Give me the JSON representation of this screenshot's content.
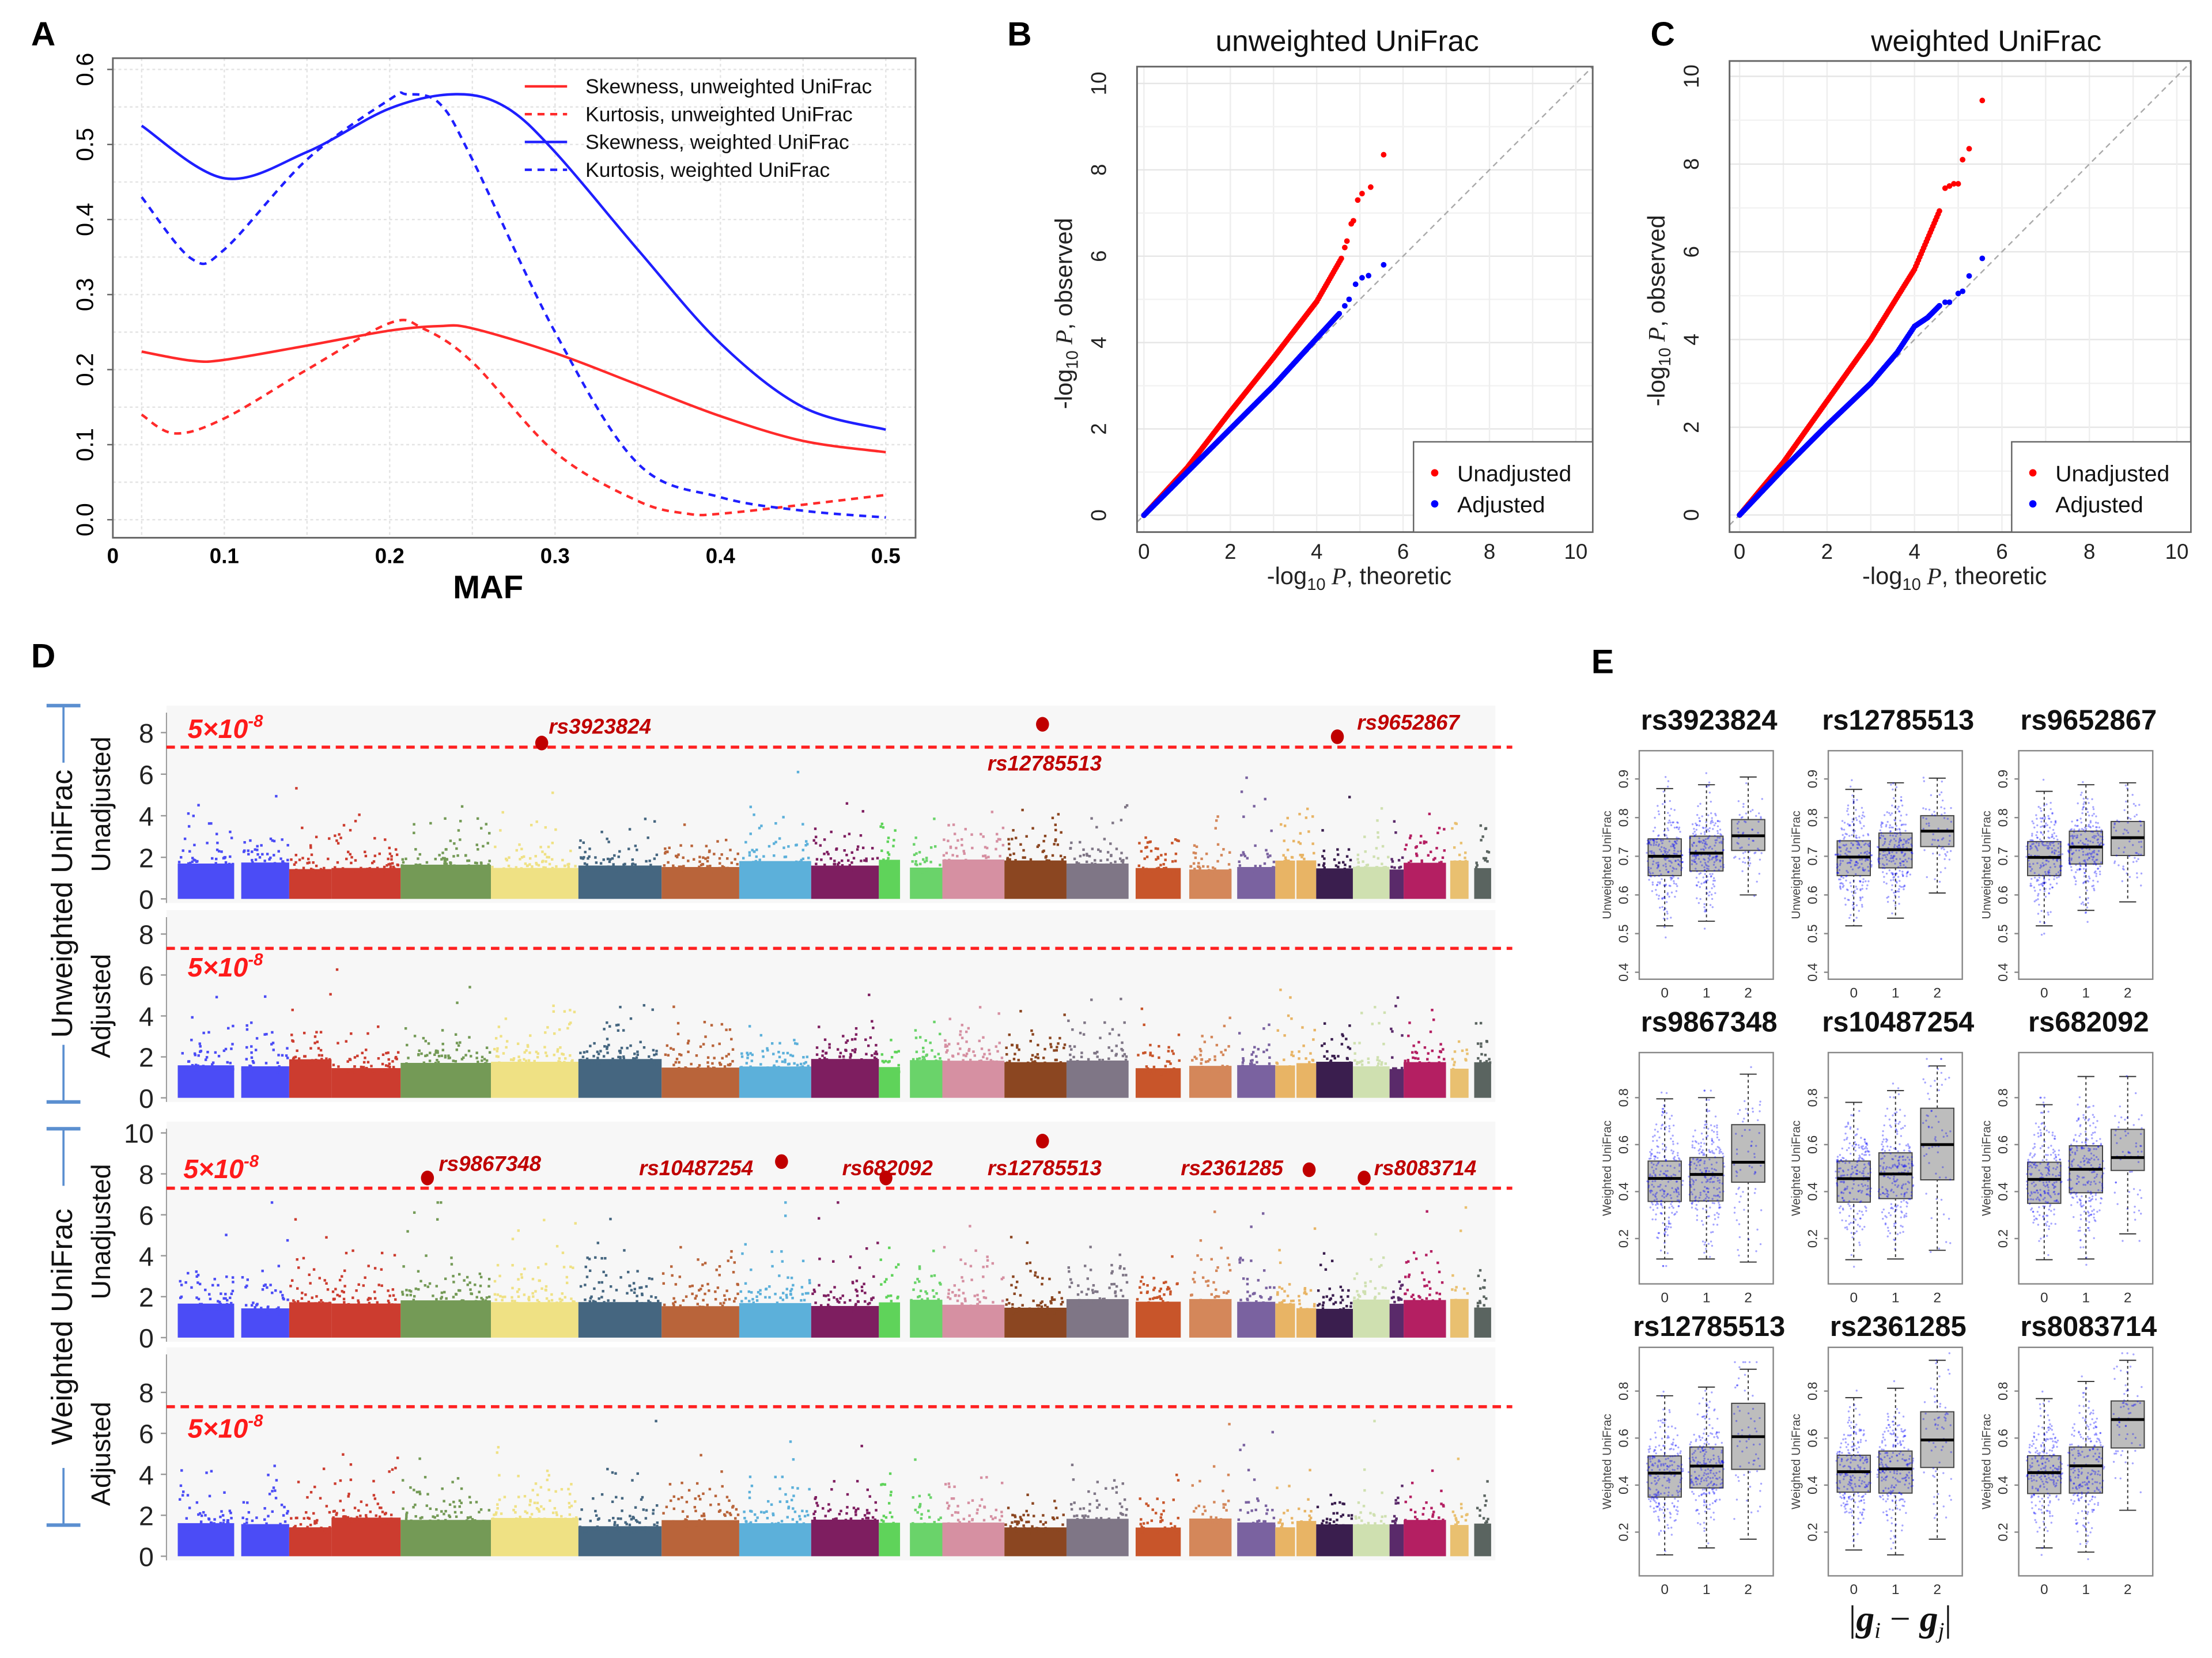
{
  "figure_labels": {
    "a": "A",
    "b": "B",
    "c": "C",
    "d": "D",
    "e": "E"
  },
  "chart_data": [
    {
      "panel": "A",
      "type": "line",
      "xlabel": "MAF",
      "ylabel": "",
      "xlim": [
        0.0326,
        0.518
      ],
      "ylim": [
        -0.024,
        0.615
      ],
      "x_origin_label": "0",
      "xticks": [
        0.1,
        0.2,
        0.3,
        0.4,
        0.5
      ],
      "xtick_labels": [
        "0.1",
        "0.2",
        "0.3",
        "0.4",
        "0.5"
      ],
      "yticks": [
        0,
        0.1,
        0.2,
        0.3,
        0.4,
        0.5,
        0.6
      ],
      "ytick_labels": [
        "0.0",
        "0.1",
        "0.2",
        "0.3",
        "0.4",
        "0.5",
        "0.6"
      ],
      "grid": true,
      "legend": "top-right",
      "series": [
        {
          "name": "Skewness, unweighted UniFrac",
          "color": "#ff2a2a",
          "dashed": false,
          "x": [
            0.05,
            0.08,
            0.1,
            0.15,
            0.2,
            0.23,
            0.25,
            0.3,
            0.35,
            0.4,
            0.45,
            0.5
          ],
          "y": [
            0.224,
            0.212,
            0.213,
            0.232,
            0.252,
            0.258,
            0.255,
            0.222,
            0.18,
            0.138,
            0.105,
            0.09
          ]
        },
        {
          "name": "Kurtosis, unweighted UniFrac",
          "color": "#ff2a2a",
          "dashed": true,
          "x": [
            0.05,
            0.07,
            0.1,
            0.15,
            0.2,
            0.22,
            0.25,
            0.3,
            0.35,
            0.38,
            0.4,
            0.45,
            0.5
          ],
          "y": [
            0.14,
            0.115,
            0.135,
            0.2,
            0.262,
            0.255,
            0.21,
            0.09,
            0.025,
            0.008,
            0.008,
            0.02,
            0.033
          ]
        },
        {
          "name": "Skewness, weighted UniFrac",
          "color": "#1f1fff",
          "dashed": false,
          "x": [
            0.05,
            0.1,
            0.15,
            0.2,
            0.24,
            0.27,
            0.3,
            0.35,
            0.4,
            0.45,
            0.5
          ],
          "y": [
            0.525,
            0.455,
            0.49,
            0.548,
            0.567,
            0.55,
            0.49,
            0.36,
            0.235,
            0.15,
            0.12
          ]
        },
        {
          "name": "Kurtosis, weighted UniFrac",
          "color": "#1f1fff",
          "dashed": true,
          "x": [
            0.05,
            0.08,
            0.1,
            0.15,
            0.2,
            0.21,
            0.23,
            0.25,
            0.3,
            0.35,
            0.4,
            0.45,
            0.5
          ],
          "y": [
            0.43,
            0.348,
            0.36,
            0.48,
            0.56,
            0.567,
            0.555,
            0.48,
            0.25,
            0.075,
            0.03,
            0.012,
            0.003
          ]
        }
      ]
    },
    {
      "panel": "B",
      "type": "scatter",
      "title": "unweighted  UniFrac",
      "xlabel": {
        "prefix": "-log",
        "sub": "10",
        "italic": " P",
        "suffix": ", theoretic"
      },
      "ylabel": {
        "prefix": "-log",
        "sub": "10",
        "italic": " P",
        "suffix": ", observed"
      },
      "xlim": [
        -0.16,
        10.39
      ],
      "ylim": [
        -0.39,
        10.39
      ],
      "xticks": [
        0,
        2,
        4,
        6,
        8,
        10
      ],
      "yticks": [
        0,
        2,
        4,
        6,
        8,
        10
      ],
      "grid": true,
      "reference_line": "y = x",
      "legend": "bottom-right",
      "series": [
        {
          "name": "Unadjusted",
          "color": "#ff0000",
          "curve": [
            [
              0,
              0
            ],
            [
              1,
              1.1
            ],
            [
              2,
              2.4
            ],
            [
              3,
              3.65
            ],
            [
              4,
              4.95
            ],
            [
              4.6,
              6.0
            ]
          ],
          "tail": [
            [
              4.65,
              6.2
            ],
            [
              4.7,
              6.35
            ],
            [
              4.8,
              6.75
            ],
            [
              4.85,
              6.82
            ],
            [
              4.95,
              7.3
            ],
            [
              5.05,
              7.45
            ],
            [
              5.25,
              7.6
            ],
            [
              5.55,
              8.35
            ]
          ]
        },
        {
          "name": "Adjusted",
          "color": "#0000ff",
          "curve": [
            [
              0,
              0
            ],
            [
              1,
              1
            ],
            [
              2,
              2.0
            ],
            [
              3,
              3.0
            ],
            [
              4,
              4.1
            ],
            [
              4.55,
              4.7
            ]
          ],
          "tail": [
            [
              4.65,
              4.85
            ],
            [
              4.75,
              5.0
            ],
            [
              4.9,
              5.35
            ],
            [
              5.05,
              5.5
            ],
            [
              5.2,
              5.55
            ],
            [
              5.55,
              5.8
            ]
          ]
        }
      ]
    },
    {
      "panel": "C",
      "type": "scatter",
      "title": "weighted  UniFrac",
      "xlabel": {
        "prefix": "-log",
        "sub": "10",
        "italic": " P",
        "suffix": ", theoretic"
      },
      "ylabel": {
        "prefix": "-log",
        "sub": "10",
        "italic": " P",
        "suffix": ", observed"
      },
      "xlim": [
        -0.23,
        10.32
      ],
      "ylim": [
        -0.39,
        10.35
      ],
      "xticks": [
        0,
        2,
        4,
        6,
        8,
        10
      ],
      "yticks": [
        0,
        2,
        4,
        6,
        8,
        10
      ],
      "grid": true,
      "reference_line": "y = x",
      "legend": "bottom-right",
      "series": [
        {
          "name": "Unadjusted",
          "color": "#ff0000",
          "curve": [
            [
              0,
              0
            ],
            [
              1,
              1.2
            ],
            [
              2,
              2.6
            ],
            [
              3,
              4.0
            ],
            [
              4,
              5.6
            ],
            [
              4.6,
              7.0
            ]
          ],
          "tail": [
            [
              4.7,
              7.45
            ],
            [
              4.8,
              7.5
            ],
            [
              4.9,
              7.55
            ],
            [
              5.0,
              7.55
            ],
            [
              5.1,
              8.1
            ],
            [
              5.25,
              8.35
            ],
            [
              5.55,
              9.45
            ]
          ]
        },
        {
          "name": "Adjusted",
          "color": "#0000ff",
          "curve": [
            [
              0,
              0
            ],
            [
              1,
              1.05
            ],
            [
              2,
              2.05
            ],
            [
              3,
              3.0
            ],
            [
              3.6,
              3.7
            ],
            [
              4,
              4.3
            ],
            [
              4.3,
              4.5
            ],
            [
              4.6,
              4.8
            ]
          ],
          "tail": [
            [
              4.7,
              4.85
            ],
            [
              4.8,
              4.85
            ],
            [
              5.0,
              5.05
            ],
            [
              5.1,
              5.1
            ],
            [
              5.25,
              5.45
            ],
            [
              5.55,
              5.85
            ]
          ]
        }
      ]
    },
    {
      "panel": "D",
      "type": "scatter",
      "chromosome_colors": [
        "#4b4cf6",
        "#4b4cf6",
        "#cc3c2f",
        "#cc3c2f",
        "#749a56",
        "#efe184",
        "#456680",
        "#b9643a",
        "#5cb0da",
        "#7e1e60",
        "#5fd35a",
        "#6ad36a",
        "#d690a2",
        "#8b4621",
        "#7f7686",
        "#c8552a",
        "#d4875a",
        "#7a62a0",
        "#e8b465",
        "#e8b465",
        "#3a1e4e",
        "#cfe0b0",
        "#5a2a6a",
        "#b41f62",
        "#e9c070",
        "#5a6460"
      ],
      "threshold_label": {
        "base": "5×10",
        "exp": "-8"
      },
      "threshold_value": 7.3,
      "groups": [
        {
          "label": "Unweighted UniFrac",
          "panels": [
            0,
            1
          ]
        },
        {
          "label": "Weighted UniFrac",
          "panels": [
            2,
            3
          ]
        }
      ],
      "panels": [
        {
          "label": "Unadjusted",
          "ylim": [
            -0.2,
            9.3
          ],
          "yticks": [
            0,
            2,
            4,
            6,
            8
          ],
          "hits": [
            {
              "snp": "rs3923824",
              "chr": 6,
              "value": 7.5
            },
            {
              "snp": "rs12785513",
              "chr": 14,
              "value": 8.4
            },
            {
              "snp": "rs9652867",
              "chr": 21,
              "value": 7.8
            }
          ]
        },
        {
          "label": "Adjusted",
          "ylim": [
            -0.2,
            9.17
          ],
          "yticks": [
            0,
            2,
            4,
            6,
            8
          ],
          "hits": []
        },
        {
          "label": "Unadjusted",
          "ylim": [
            -0.2,
            10.55
          ],
          "yticks": [
            0,
            2,
            4,
            6,
            8,
            10
          ],
          "hits": [
            {
              "snp": "rs9867348",
              "chr": 5,
              "value": 7.8
            },
            {
              "snp": "rs10487254",
              "chr": 9,
              "value": 8.6
            },
            {
              "snp": "rs682092",
              "chr": 11,
              "value": 7.8
            },
            {
              "snp": "rs12785513",
              "chr": 14,
              "value": 9.6
            },
            {
              "snp": "rs2361285",
              "chr": 20,
              "value": 8.2
            },
            {
              "snp": "rs8083714",
              "chr": 22,
              "value": 7.8
            }
          ]
        },
        {
          "label": "Adjusted",
          "ylim": [
            -0.2,
            10.2
          ],
          "yticks": [
            0,
            2,
            4,
            6,
            8
          ],
          "hits": []
        }
      ]
    },
    {
      "panel": "E",
      "type": "box",
      "xlabel": {
        "bar_left": "|",
        "g1": "g",
        "i": "i",
        "minus": " − ",
        "g2": "g",
        "j": "j",
        "bar_right": "|"
      },
      "xticks": [
        "0",
        "1",
        "2"
      ],
      "point_color": "#0000ff",
      "plots": [
        {
          "title": "rs3923824",
          "ylabel": "Unweighted UniFrac",
          "ylim": [
            0.382,
            0.973
          ],
          "yticks": [
            0.4,
            0.5,
            0.6,
            0.7,
            0.8,
            0.9
          ],
          "groups": [
            {
              "med": 0.7,
              "q1": 0.65,
              "q3": 0.745,
              "lo": 0.52,
              "hi": 0.875
            },
            {
              "med": 0.708,
              "q1": 0.662,
              "q3": 0.752,
              "lo": 0.532,
              "hi": 0.885
            },
            {
              "med": 0.753,
              "q1": 0.715,
              "q3": 0.795,
              "lo": 0.6,
              "hi": 0.905
            }
          ]
        },
        {
          "title": "rs12785513",
          "ylabel": "Unweighted UniFrac",
          "ylim": [
            0.382,
            0.973
          ],
          "yticks": [
            0.4,
            0.5,
            0.6,
            0.7,
            0.8,
            0.9
          ],
          "groups": [
            {
              "med": 0.698,
              "q1": 0.65,
              "q3": 0.74,
              "lo": 0.52,
              "hi": 0.873
            },
            {
              "med": 0.717,
              "q1": 0.67,
              "q3": 0.76,
              "lo": 0.54,
              "hi": 0.89
            },
            {
              "med": 0.765,
              "q1": 0.725,
              "q3": 0.805,
              "lo": 0.605,
              "hi": 0.902
            }
          ]
        },
        {
          "title": "rs9652867",
          "ylabel": "Unweighted UniFrac",
          "ylim": [
            0.382,
            0.973
          ],
          "yticks": [
            0.4,
            0.5,
            0.6,
            0.7,
            0.8,
            0.9
          ],
          "groups": [
            {
              "med": 0.697,
              "q1": 0.65,
              "q3": 0.738,
              "lo": 0.52,
              "hi": 0.868
            },
            {
              "med": 0.724,
              "q1": 0.68,
              "q3": 0.765,
              "lo": 0.56,
              "hi": 0.885
            },
            {
              "med": 0.748,
              "q1": 0.702,
              "q3": 0.79,
              "lo": 0.582,
              "hi": 0.89
            }
          ]
        },
        {
          "title": "rs9867348",
          "ylabel": "Weighted UniFrac",
          "ylim": [
            0.007,
            0.992
          ],
          "yticks": [
            0.2,
            0.4,
            0.6,
            0.8
          ],
          "groups": [
            {
              "med": 0.456,
              "q1": 0.358,
              "q3": 0.53,
              "lo": 0.113,
              "hi": 0.795
            },
            {
              "med": 0.473,
              "q1": 0.36,
              "q3": 0.545,
              "lo": 0.113,
              "hi": 0.8
            },
            {
              "med": 0.525,
              "q1": 0.44,
              "q3": 0.685,
              "lo": 0.1,
              "hi": 0.9
            }
          ]
        },
        {
          "title": "rs10487254",
          "ylabel": "Weighted UniFrac",
          "ylim": [
            0.007,
            0.992
          ],
          "yticks": [
            0.2,
            0.4,
            0.6,
            0.8
          ],
          "groups": [
            {
              "med": 0.455,
              "q1": 0.355,
              "q3": 0.53,
              "lo": 0.11,
              "hi": 0.78
            },
            {
              "med": 0.475,
              "q1": 0.37,
              "q3": 0.565,
              "lo": 0.113,
              "hi": 0.83
            },
            {
              "med": 0.6,
              "q1": 0.45,
              "q3": 0.755,
              "lo": 0.15,
              "hi": 0.935
            }
          ]
        },
        {
          "title": "rs682092",
          "ylabel": "Weighted UniFrac",
          "ylim": [
            0.007,
            0.992
          ],
          "yticks": [
            0.2,
            0.4,
            0.6,
            0.8
          ],
          "groups": [
            {
              "med": 0.452,
              "q1": 0.35,
              "q3": 0.525,
              "lo": 0.11,
              "hi": 0.77
            },
            {
              "med": 0.495,
              "q1": 0.395,
              "q3": 0.595,
              "lo": 0.113,
              "hi": 0.89
            },
            {
              "med": 0.545,
              "q1": 0.49,
              "q3": 0.665,
              "lo": 0.22,
              "hi": 0.89
            }
          ]
        },
        {
          "title": "rs12785513",
          "ylabel": "Weighted UniFrac",
          "ylim": [
            0.014,
            0.986
          ],
          "yticks": [
            0.2,
            0.4,
            0.6,
            0.8
          ],
          "groups": [
            {
              "med": 0.451,
              "q1": 0.349,
              "q3": 0.524,
              "lo": 0.103,
              "hi": 0.78
            },
            {
              "med": 0.481,
              "q1": 0.388,
              "q3": 0.562,
              "lo": 0.133,
              "hi": 0.817
            },
            {
              "med": 0.606,
              "q1": 0.467,
              "q3": 0.748,
              "lo": 0.17,
              "hi": 0.893
            }
          ]
        },
        {
          "title": "rs2361285",
          "ylabel": "Weighted UniFrac",
          "ylim": [
            0.014,
            0.986
          ],
          "yticks": [
            0.2,
            0.4,
            0.6,
            0.8
          ],
          "groups": [
            {
              "med": 0.457,
              "q1": 0.37,
              "q3": 0.527,
              "lo": 0.124,
              "hi": 0.772
            },
            {
              "med": 0.469,
              "q1": 0.366,
              "q3": 0.545,
              "lo": 0.103,
              "hi": 0.812
            },
            {
              "med": 0.592,
              "q1": 0.475,
              "q3": 0.712,
              "lo": 0.17,
              "hi": 0.931
            }
          ]
        },
        {
          "title": "rs8083714",
          "ylabel": "Weighted UniFrac",
          "ylim": [
            0.014,
            0.986
          ],
          "yticks": [
            0.2,
            0.4,
            0.6,
            0.8
          ],
          "groups": [
            {
              "med": 0.453,
              "q1": 0.364,
              "q3": 0.525,
              "lo": 0.133,
              "hi": 0.768
            },
            {
              "med": 0.482,
              "q1": 0.366,
              "q3": 0.562,
              "lo": 0.115,
              "hi": 0.841
            },
            {
              "med": 0.679,
              "q1": 0.558,
              "q3": 0.758,
              "lo": 0.293,
              "hi": 0.931
            }
          ]
        }
      ]
    }
  ]
}
